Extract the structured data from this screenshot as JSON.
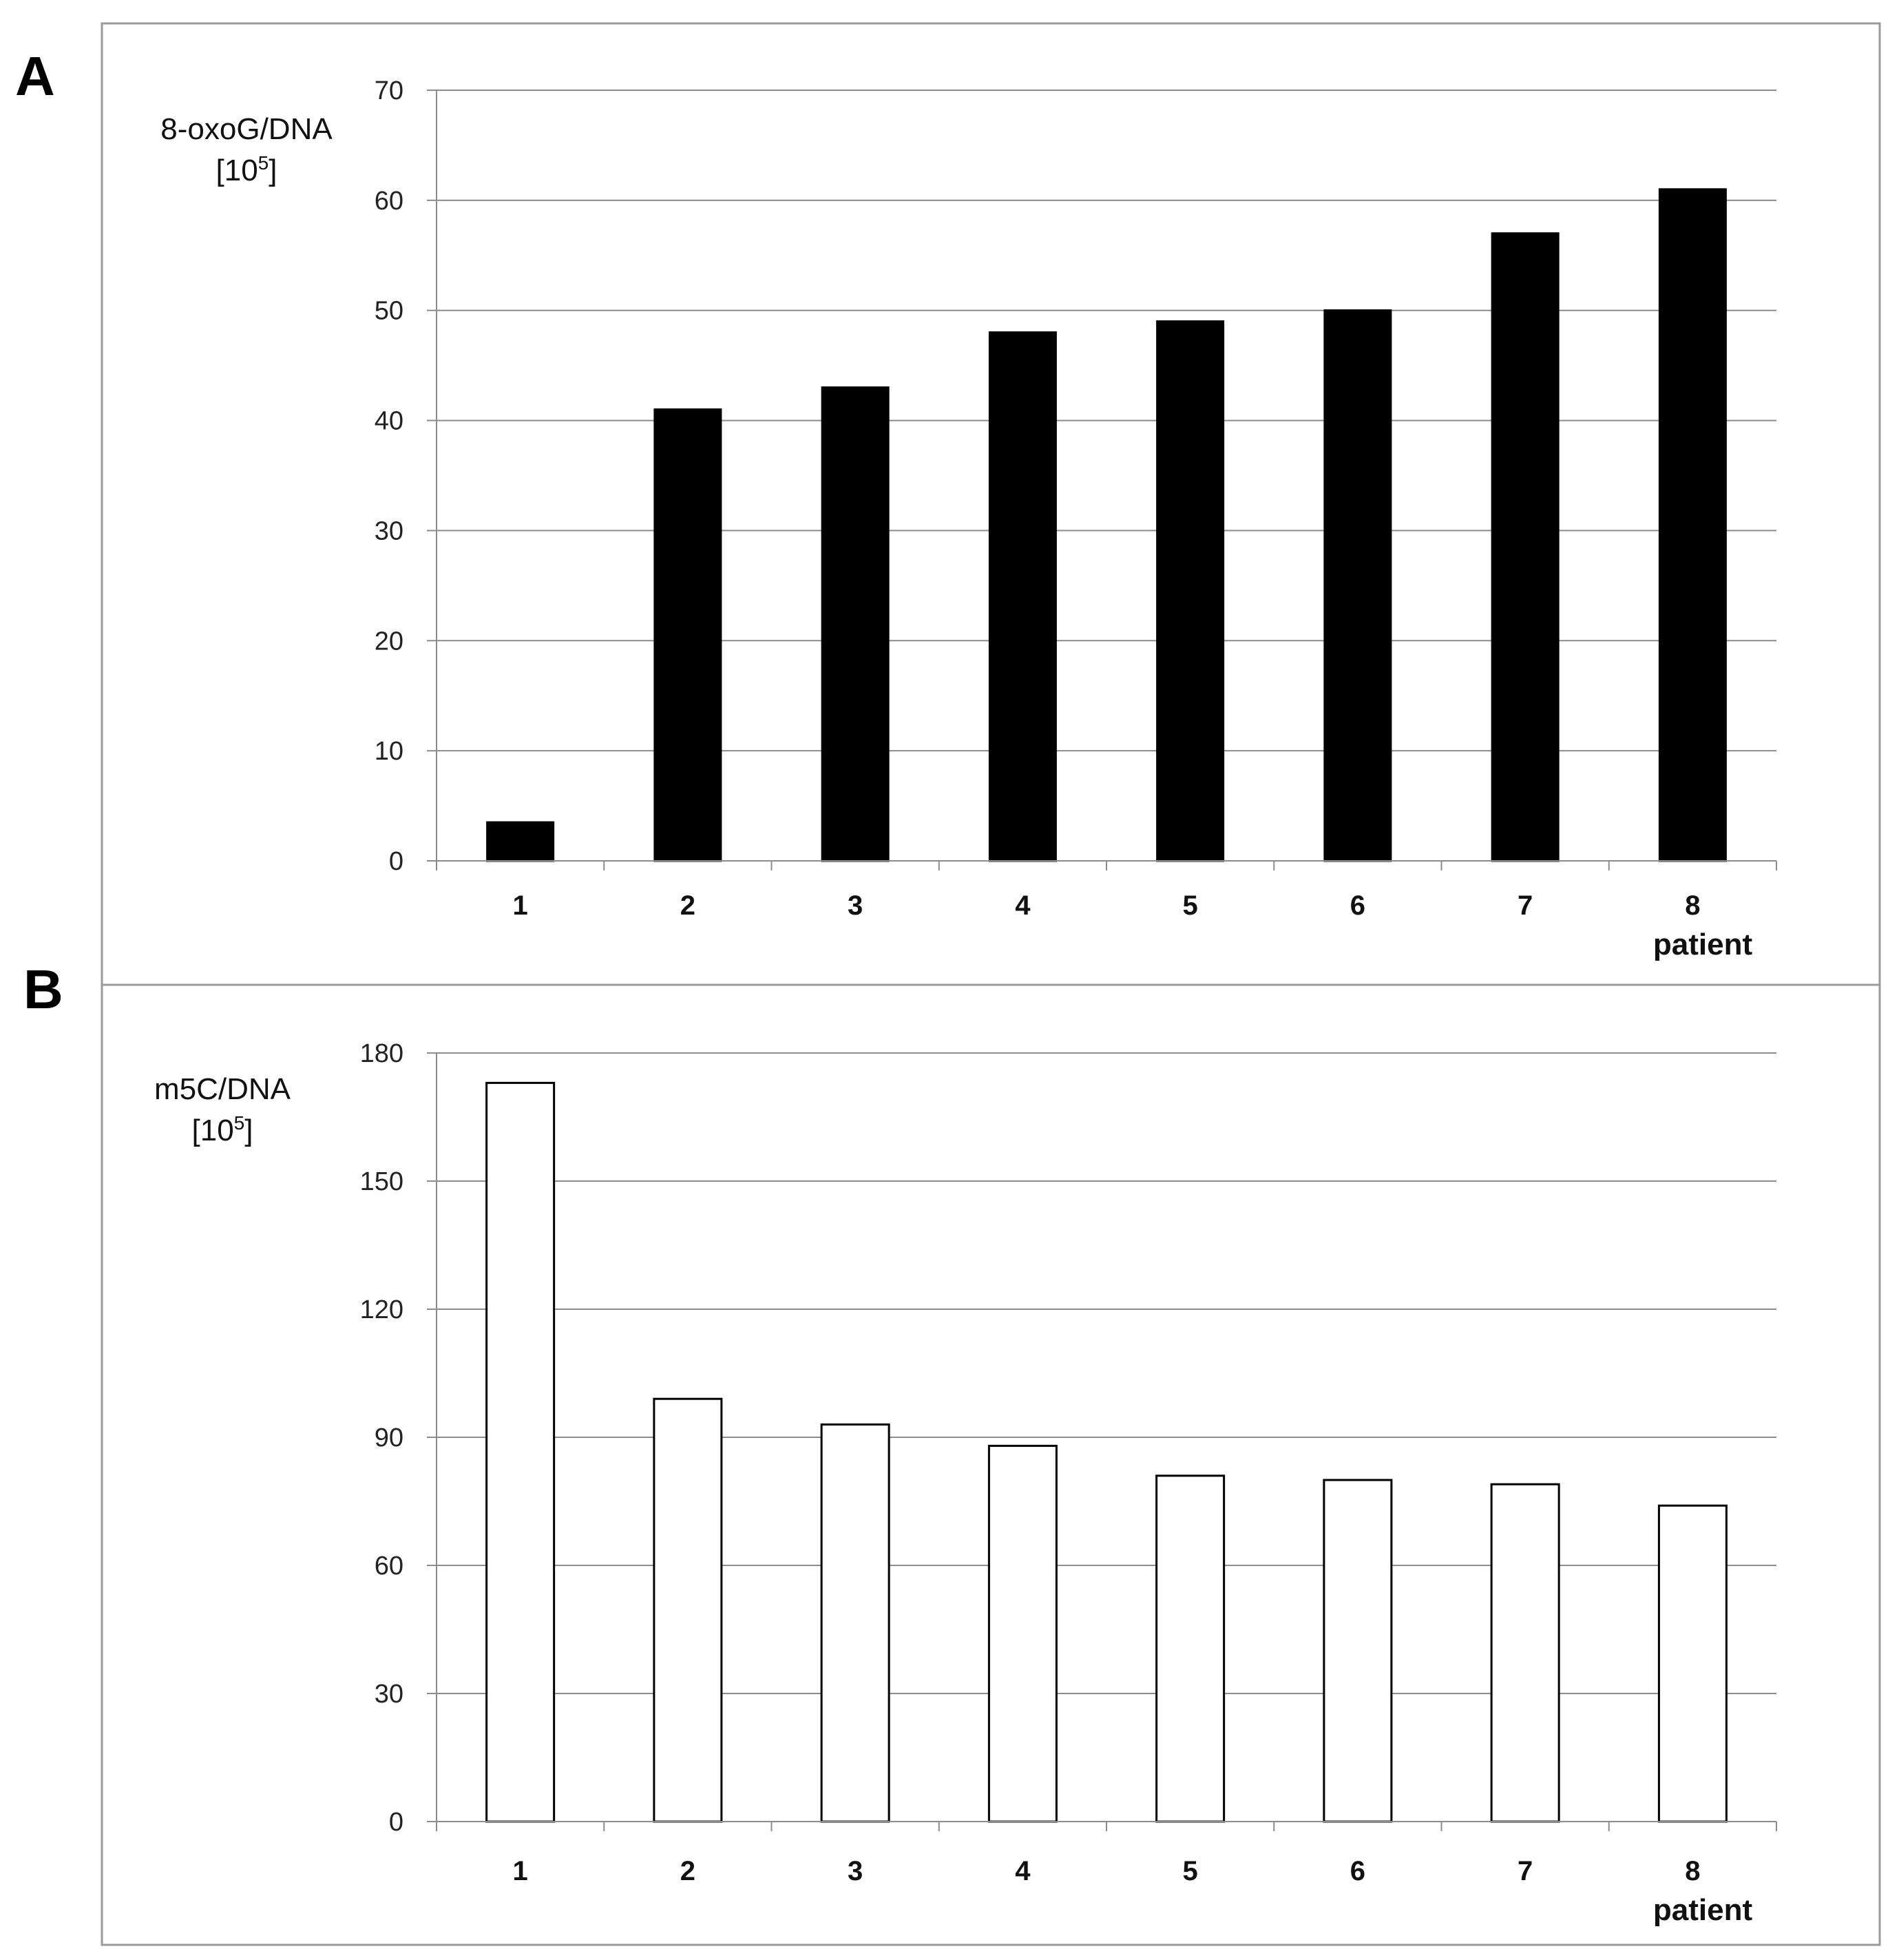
{
  "chart_data": [
    {
      "type": "bar",
      "panel": "A",
      "ylabel_main": "8-oxoG/DNA",
      "ylabel_unit_base": "[10",
      "ylabel_unit_exp": "5",
      "ylabel_unit_end": "]",
      "xlabel": "patient",
      "categories": [
        "1",
        "2",
        "3",
        "4",
        "5",
        "6",
        "7",
        "8"
      ],
      "values": [
        3.5,
        41,
        43,
        48,
        49,
        50,
        57,
        61
      ],
      "ylim": [
        0,
        70
      ],
      "yticks": [
        0,
        10,
        20,
        30,
        40,
        50,
        60,
        70
      ],
      "grid": true,
      "bar_fill": "#000000",
      "bar_stroke": "#000000"
    },
    {
      "type": "bar",
      "panel": "B",
      "ylabel_main": "m5C/DNA",
      "ylabel_unit_base": "[10",
      "ylabel_unit_exp": "5",
      "ylabel_unit_end": "]",
      "xlabel": "patient",
      "categories": [
        "1",
        "2",
        "3",
        "4",
        "5",
        "6",
        "7",
        "8"
      ],
      "values": [
        173,
        99,
        93,
        88,
        81,
        80,
        79,
        74
      ],
      "ylim": [
        0,
        180
      ],
      "yticks": [
        0,
        30,
        60,
        90,
        120,
        150,
        180
      ],
      "grid": true,
      "bar_fill": "#ffffff",
      "bar_stroke": "#000000"
    }
  ]
}
